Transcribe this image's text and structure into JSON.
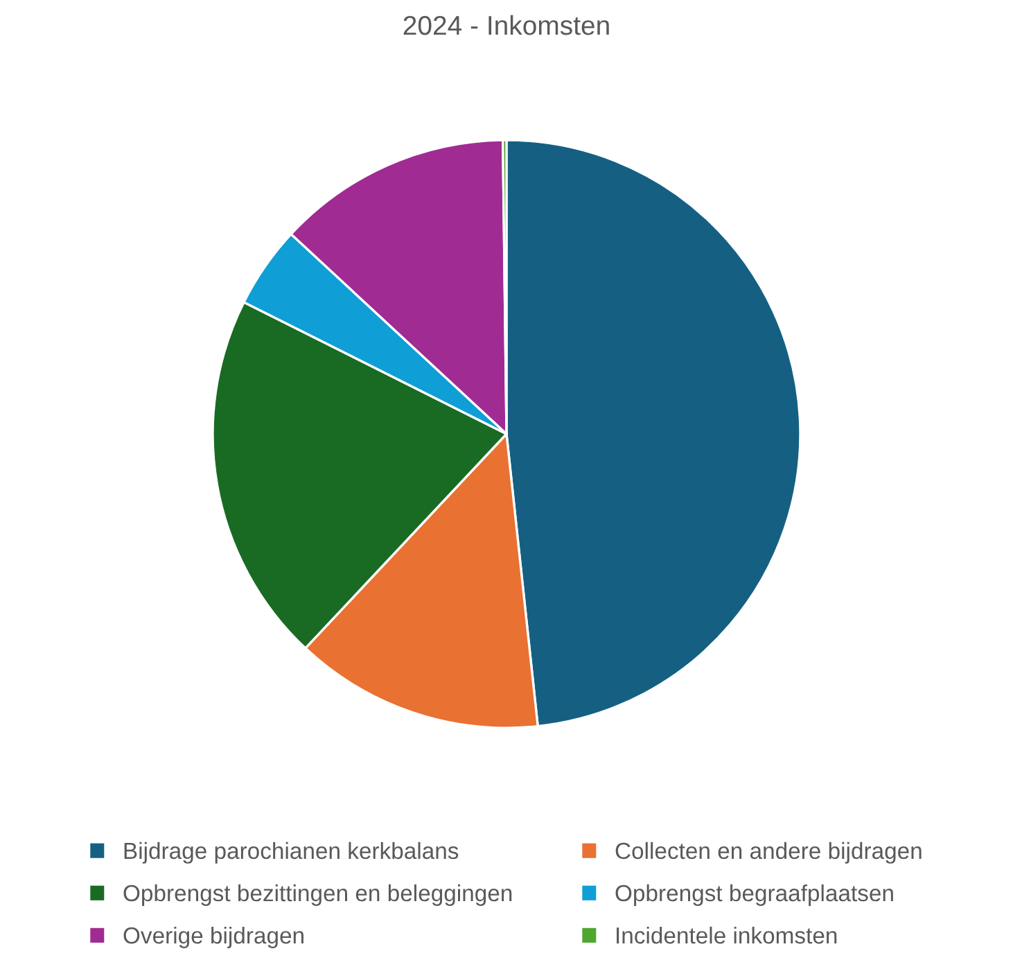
{
  "chart_data": {
    "type": "pie",
    "title": "2024 - Inkomsten",
    "categories": [
      "Bijdrage parochianen kerkbalans",
      "Collecten en andere bijdragen",
      "Opbrengst bezittingen en beleggingen",
      "Opbrengst begraafplaatsen",
      "Overige bijdragen",
      "Incidentele inkomsten"
    ],
    "values": [
      48.3,
      13.7,
      20.4,
      4.5,
      12.9,
      0.2
    ],
    "colors": [
      "#156082",
      "#e97132",
      "#196b24",
      "#0f9ed5",
      "#a02b93",
      "#4ea72e"
    ],
    "legend": "bottom"
  }
}
